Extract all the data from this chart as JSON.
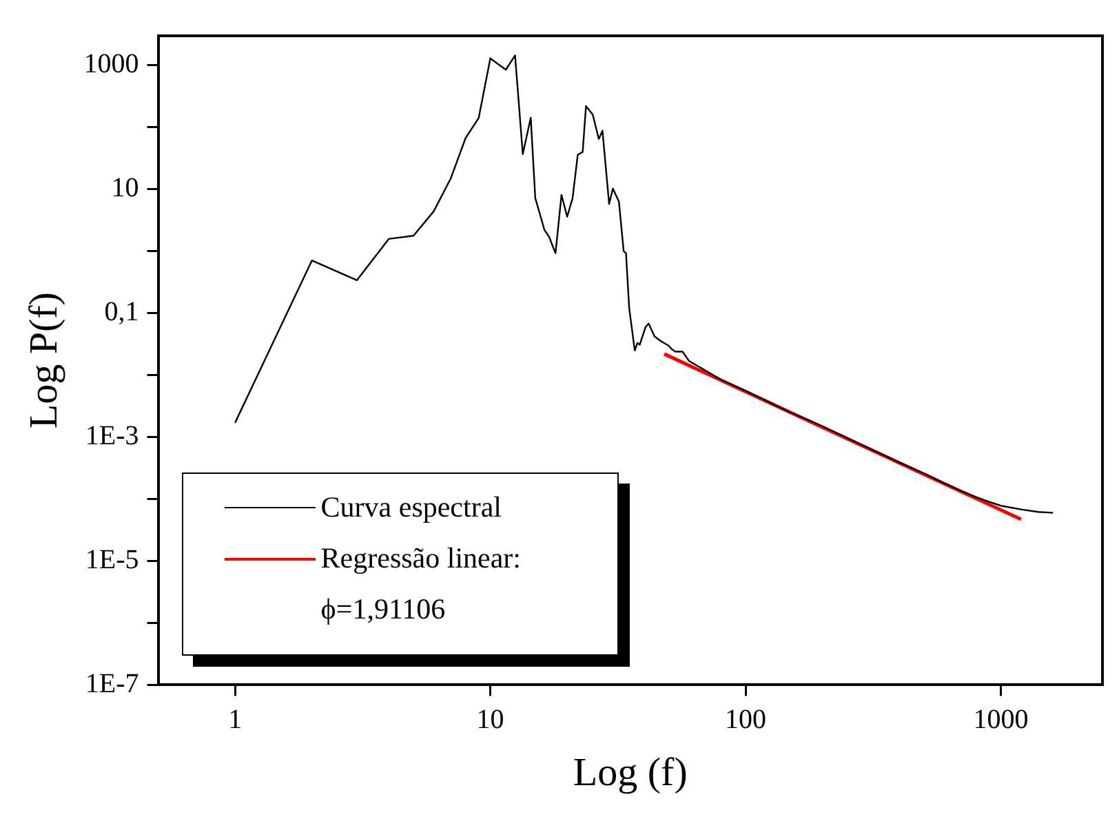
{
  "chart_data": {
    "type": "line",
    "xlabel": "Log (f)",
    "ylabel": "Log P(f)",
    "log": "xy",
    "grid": false,
    "legend": "bottom left",
    "marker": "none",
    "line_style": "solid",
    "xlim": [
      0.5,
      2500
    ],
    "xticks": [
      1,
      10,
      100,
      1000
    ],
    "ylim": [
      1e-07,
      3000
    ],
    "yticks": [
      {
        "value": 1000,
        "label": "1000"
      },
      {
        "value": 100,
        "label": null
      },
      {
        "value": 10,
        "label": "10"
      },
      {
        "value": 1,
        "label": null
      },
      {
        "value": 0.1,
        "label": "0,1"
      },
      {
        "value": 0.01,
        "label": null
      },
      {
        "value": 0.001,
        "label": "1E-3"
      },
      {
        "value": 0.0001,
        "label": null
      },
      {
        "value": 1e-05,
        "label": "1E-5"
      },
      {
        "value": 1e-06,
        "label": null
      },
      {
        "value": 1e-07,
        "label": "1E-7"
      }
    ],
    "annotations": [
      "ϕ=1,91106"
    ],
    "series": [
      {
        "name": "Curva espectral",
        "color": "#000000",
        "x": [
          1,
          2,
          3,
          4,
          5,
          6,
          7,
          8,
          9,
          10,
          11.5,
          12.5,
          13.4,
          14.4,
          15,
          16.3,
          17,
          18,
          19,
          20,
          21,
          22,
          23,
          23.7,
          25.2,
          26.6,
          27.5,
          29.2,
          30.2,
          31.9,
          33.3,
          34,
          35,
          36.8,
          37.7,
          38.5,
          40.5,
          41.7,
          44,
          46.8,
          49.9,
          51.5,
          53,
          56.6,
          60,
          80,
          100,
          150,
          200,
          300,
          400,
          500,
          600,
          700,
          800,
          900,
          1000,
          1200,
          1400,
          1600
        ],
        "values": [
          0.0017,
          0.71,
          0.34,
          1.58,
          1.78,
          4.4,
          15,
          67,
          141,
          1300,
          850,
          1450,
          37,
          143,
          7.2,
          2.2,
          1.7,
          0.93,
          8.1,
          3.6,
          7.2,
          36,
          40,
          220,
          160,
          65,
          88,
          5.8,
          10.3,
          6.3,
          1.0,
          0.93,
          0.12,
          0.025,
          0.033,
          0.031,
          0.059,
          0.068,
          0.042,
          0.035,
          0.03,
          0.026,
          0.024,
          0.024,
          0.017,
          0.0085,
          0.0056,
          0.0025,
          0.0015,
          0.00068,
          0.00039,
          0.00026,
          0.00018,
          0.000135,
          0.000108,
          9e-05,
          7.8e-05,
          6.8e-05,
          6.2e-05,
          6e-05
        ]
      },
      {
        "name": "Regressão linear:",
        "color": "#ff0000",
        "x": [
          48,
          1200
        ],
        "values": [
          0.022,
          4.7e-05
        ]
      }
    ]
  }
}
